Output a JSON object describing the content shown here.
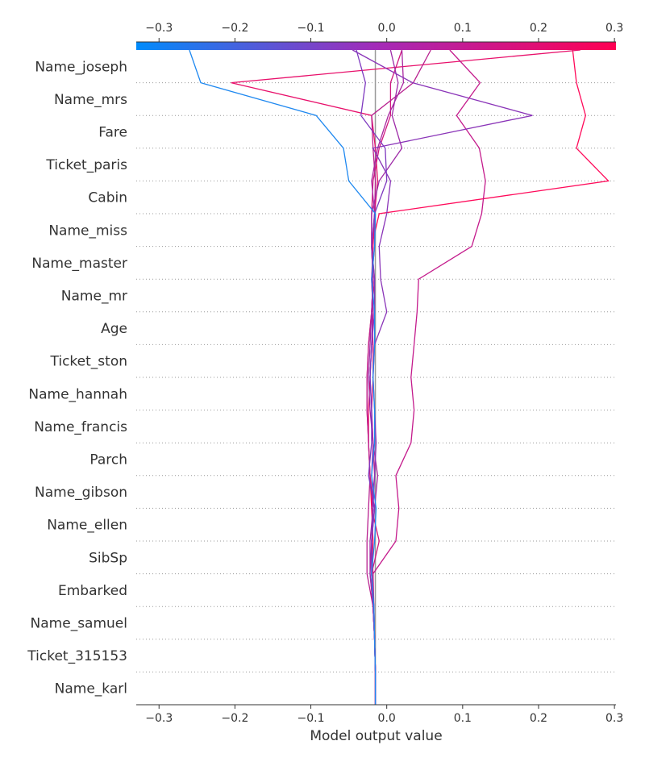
{
  "chart_data": {
    "type": "line",
    "title": "",
    "xlabel": "Model output value",
    "ylabel": "",
    "xlim": [
      -0.33,
      0.302
    ],
    "xticks": [
      -0.3,
      -0.2,
      -0.1,
      0.0,
      0.1,
      0.2,
      0.3
    ],
    "xtick_labels": [
      "−0.3",
      "−0.2",
      "−0.1",
      "0.0",
      "0.1",
      "0.2",
      "0.3"
    ],
    "base_value": -0.015,
    "grid": "dotted horizontal lines between features",
    "colormap": {
      "low": "#008bfb",
      "mid": "#a32bb8",
      "high": "#ff0052"
    },
    "features": [
      "Name_karl",
      "Ticket_315153",
      "Name_samuel",
      "Embarked",
      "SibSp",
      "Name_ellen",
      "Name_gibson",
      "Parch",
      "Name_francis",
      "Name_hannah",
      "Ticket_ston",
      "Age",
      "Name_mr",
      "Name_master",
      "Name_miss",
      "Cabin",
      "Ticket_paris",
      "Fare",
      "Name_mrs",
      "Name_joseph"
    ],
    "series": [
      {
        "color": "#ff0a5a",
        "values": [
          -0.015,
          -0.015,
          -0.016,
          -0.018,
          -0.02,
          -0.018,
          -0.02,
          -0.022,
          -0.024,
          -0.026,
          -0.026,
          -0.024,
          -0.02,
          -0.018,
          -0.02,
          -0.01,
          0.292,
          0.25,
          0.262,
          0.25,
          0.245
        ]
      },
      {
        "color": "#e8106b",
        "values": [
          -0.015,
          -0.015,
          -0.016,
          -0.017,
          -0.018,
          -0.02,
          -0.018,
          -0.022,
          -0.024,
          -0.024,
          -0.022,
          -0.02,
          -0.018,
          -0.02,
          -0.018,
          -0.016,
          -0.012,
          -0.015,
          -0.02,
          -0.205,
          0.255
        ]
      },
      {
        "color": "#d01880",
        "values": [
          -0.015,
          -0.015,
          -0.016,
          -0.018,
          -0.02,
          -0.01,
          -0.02,
          -0.016,
          -0.018,
          -0.02,
          -0.018,
          -0.018,
          -0.02,
          -0.016,
          -0.02,
          -0.02,
          -0.018,
          -0.01,
          0.005,
          0.005,
          0.02
        ]
      },
      {
        "color": "#c41b8c",
        "values": [
          -0.015,
          -0.015,
          -0.016,
          -0.018,
          -0.018,
          0.012,
          0.016,
          0.012,
          0.032,
          0.036,
          0.032,
          0.036,
          0.04,
          0.042,
          0.112,
          0.125,
          0.13,
          0.122,
          0.092,
          0.123,
          0.083
        ]
      },
      {
        "color": "#b8208f",
        "values": [
          -0.015,
          -0.015,
          -0.016,
          -0.018,
          -0.026,
          -0.026,
          -0.024,
          -0.022,
          -0.024,
          -0.026,
          -0.026,
          -0.024,
          -0.02,
          -0.018,
          -0.02,
          -0.016,
          -0.015,
          -0.018,
          -0.02,
          0.035,
          0.058
        ]
      },
      {
        "color": "#a926a0",
        "values": [
          -0.015,
          -0.015,
          -0.016,
          -0.018,
          -0.022,
          -0.02,
          -0.016,
          -0.012,
          -0.018,
          -0.02,
          -0.022,
          -0.02,
          -0.018,
          -0.02,
          -0.016,
          -0.016,
          -0.02,
          -0.012,
          0.002,
          0.022,
          0.02
        ]
      },
      {
        "color": "#9e2ba8",
        "values": [
          -0.015,
          -0.015,
          -0.016,
          -0.018,
          -0.022,
          -0.022,
          -0.018,
          -0.02,
          -0.018,
          -0.022,
          -0.024,
          -0.022,
          -0.02,
          -0.018,
          -0.02,
          -0.02,
          -0.01,
          0.02,
          0.007,
          0.015,
          0.005
        ]
      },
      {
        "color": "#8a34b8",
        "values": [
          -0.015,
          -0.015,
          -0.016,
          -0.017,
          -0.02,
          -0.02,
          -0.018,
          -0.016,
          -0.014,
          -0.016,
          -0.018,
          -0.016,
          0.0,
          -0.008,
          -0.01,
          0.0,
          0.005,
          -0.018,
          0.192,
          0.034,
          -0.045
        ]
      },
      {
        "color": "#7e38bf",
        "values": [
          -0.015,
          -0.015,
          -0.016,
          -0.017,
          -0.02,
          -0.02,
          -0.016,
          -0.024,
          -0.02,
          -0.02,
          -0.022,
          -0.02,
          -0.016,
          -0.016,
          -0.02,
          -0.016,
          0.0,
          -0.002,
          -0.034,
          -0.028,
          -0.04
        ]
      },
      {
        "color": "#1e88f0",
        "values": [
          -0.015,
          -0.015,
          -0.016,
          -0.017,
          -0.02,
          -0.016,
          -0.014,
          -0.02,
          -0.016,
          -0.016,
          -0.018,
          -0.016,
          -0.016,
          -0.02,
          -0.016,
          -0.015,
          -0.05,
          -0.057,
          -0.093,
          -0.245,
          -0.26
        ]
      }
    ]
  }
}
